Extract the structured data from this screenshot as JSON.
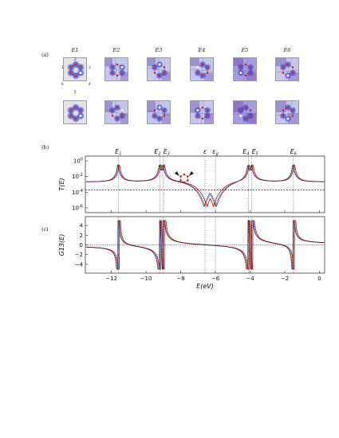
{
  "figure": {
    "panel_labels": [
      "(a)",
      "(b)",
      "(c)"
    ],
    "energy_headers": [
      "E1",
      "E2",
      "E3",
      "E4",
      "E5",
      "E6"
    ],
    "site_numbers": [
      "1",
      "2",
      "3",
      "4",
      "5",
      "6"
    ],
    "tile_colors": {
      "background": "#e4e4e6",
      "density": "#3c3ccf",
      "dark": "#5a2fa0",
      "atom": "#cc2222",
      "bond": "#555555"
    }
  },
  "chart_data": [
    {
      "type": "line",
      "panel": "(b)",
      "ylabel": "T(E)",
      "y_scale": "log",
      "y_ticks": [
        "10^0",
        "10^-2",
        "10^-4",
        "10^-6"
      ],
      "top_labels": [
        "E1",
        "E2",
        "E3",
        "ε",
        "ε_g",
        "E4",
        "E5",
        "E6"
      ],
      "resonances": [
        -11.6,
        -9.2,
        -9.0,
        -6.6,
        -6.0,
        -4.1,
        -3.9,
        -1.5
      ],
      "threshold_line": 0.0002,
      "series": [
        {
          "color": "#1f3fb0",
          "style": "dotted"
        },
        {
          "color": "#c81e1e",
          "style": "solid"
        },
        {
          "color": "#222222",
          "style": "solid"
        }
      ]
    },
    {
      "type": "line",
      "panel": "(c)",
      "ylabel": "G13(E)",
      "xlabel": "E(eV)",
      "x_ticks": [
        -12,
        -10,
        -8,
        -6,
        -4,
        -2,
        0
      ],
      "xlim": [
        -13.5,
        0.3
      ],
      "y_ticks": [
        4,
        2,
        0,
        -2,
        -4
      ],
      "ylim": [
        -5,
        5
      ]
    }
  ]
}
